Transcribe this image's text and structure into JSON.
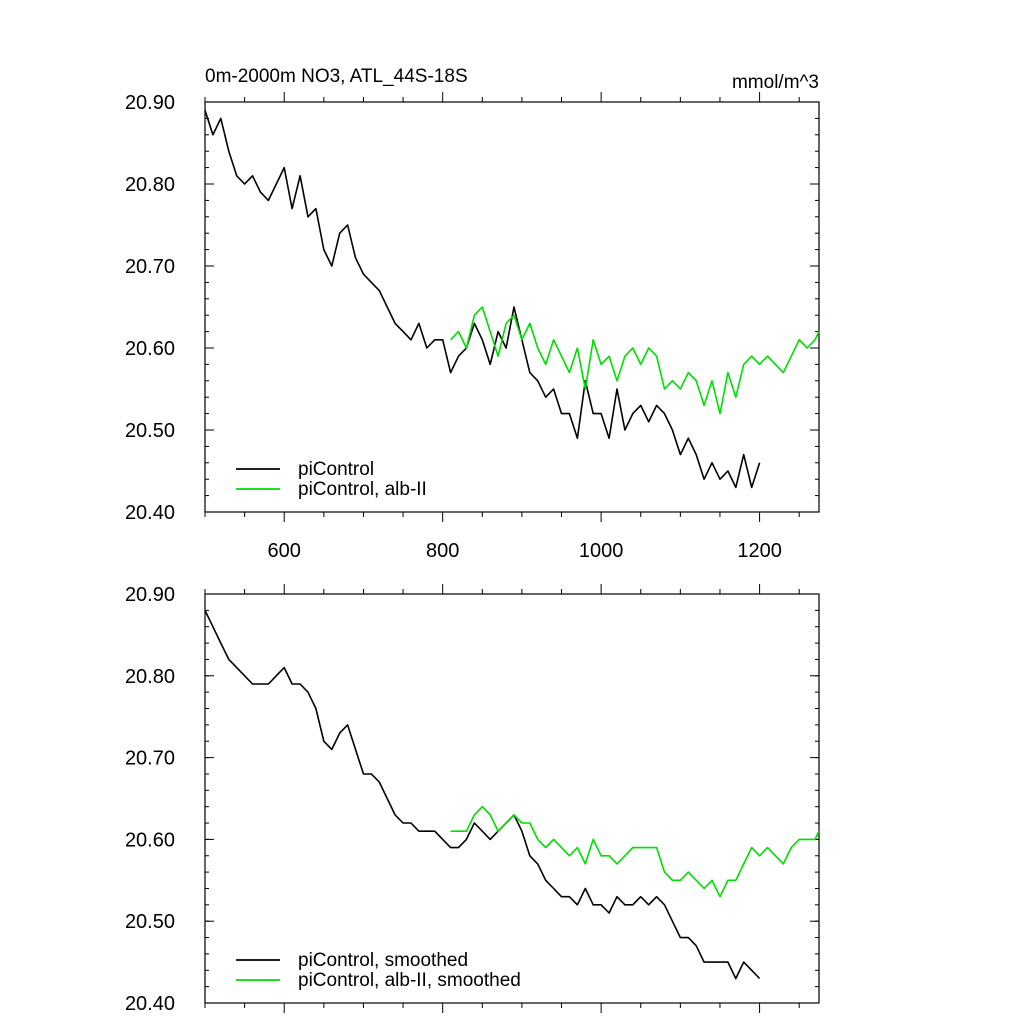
{
  "chart_data": [
    {
      "type": "line",
      "title": "0m-2000m NO3, ATL_44S-18S",
      "units": "mmol/m^3",
      "xlim": [
        500,
        1275
      ],
      "ylim": [
        20.4,
        20.9
      ],
      "xticks": [
        600,
        800,
        1000,
        1200
      ],
      "xtick_labels": [
        "600",
        "800",
        "1000",
        "1200"
      ],
      "yticks": [
        20.4,
        20.5,
        20.6,
        20.7,
        20.8,
        20.9
      ],
      "ytick_labels": [
        "20.40",
        "20.50",
        "20.60",
        "20.70",
        "20.80",
        "20.90"
      ],
      "legend_position": "bottom-left",
      "grid": false,
      "series": [
        {
          "name": "piControl",
          "color": "#000000",
          "x": [
            500,
            510,
            520,
            530,
            540,
            550,
            560,
            570,
            580,
            590,
            600,
            610,
            620,
            630,
            640,
            650,
            660,
            670,
            680,
            690,
            700,
            710,
            720,
            730,
            740,
            750,
            760,
            770,
            780,
            790,
            800,
            810,
            820,
            830,
            840,
            850,
            860,
            870,
            880,
            890,
            900,
            910,
            920,
            930,
            940,
            950,
            960,
            970,
            980,
            990,
            1000,
            1010,
            1020,
            1030,
            1040,
            1050,
            1060,
            1070,
            1080,
            1090,
            1100,
            1110,
            1120,
            1130,
            1140,
            1150,
            1160,
            1170,
            1180,
            1190,
            1200
          ],
          "y": [
            20.89,
            20.86,
            20.88,
            20.84,
            20.81,
            20.8,
            20.81,
            20.79,
            20.78,
            20.8,
            20.82,
            20.77,
            20.81,
            20.76,
            20.77,
            20.72,
            20.7,
            20.74,
            20.75,
            20.71,
            20.69,
            20.68,
            20.67,
            20.65,
            20.63,
            20.62,
            20.61,
            20.63,
            20.6,
            20.61,
            20.61,
            20.57,
            20.59,
            20.6,
            20.63,
            20.61,
            20.58,
            20.62,
            20.6,
            20.65,
            20.61,
            20.57,
            20.56,
            20.54,
            20.55,
            20.52,
            20.52,
            20.49,
            20.56,
            20.52,
            20.52,
            20.49,
            20.55,
            20.5,
            20.52,
            20.53,
            20.51,
            20.53,
            20.52,
            20.5,
            20.47,
            20.49,
            20.47,
            20.44,
            20.46,
            20.44,
            20.45,
            20.43,
            20.47,
            20.43,
            20.46
          ]
        },
        {
          "name": "piControl, alb-II",
          "color": "#00dd00",
          "x": [
            810,
            820,
            830,
            840,
            850,
            860,
            870,
            880,
            890,
            900,
            910,
            920,
            930,
            940,
            950,
            960,
            970,
            980,
            990,
            1000,
            1010,
            1020,
            1030,
            1040,
            1050,
            1060,
            1070,
            1080,
            1090,
            1100,
            1110,
            1120,
            1130,
            1140,
            1150,
            1160,
            1170,
            1180,
            1190,
            1200,
            1210,
            1220,
            1230,
            1240,
            1250,
            1260,
            1270,
            1275
          ],
          "y": [
            20.61,
            20.62,
            20.6,
            20.64,
            20.65,
            20.62,
            20.59,
            20.63,
            20.64,
            20.61,
            20.63,
            20.6,
            20.58,
            20.61,
            20.59,
            20.57,
            20.6,
            20.55,
            20.61,
            20.58,
            20.59,
            20.56,
            20.59,
            20.6,
            20.58,
            20.6,
            20.59,
            20.55,
            20.56,
            20.55,
            20.57,
            20.56,
            20.53,
            20.56,
            20.52,
            20.57,
            20.54,
            20.58,
            20.59,
            20.58,
            20.59,
            20.58,
            20.57,
            20.59,
            20.61,
            20.6,
            20.61,
            20.62
          ]
        }
      ]
    },
    {
      "type": "line",
      "title": "",
      "units": "",
      "xlim": [
        500,
        1275
      ],
      "ylim": [
        20.4,
        20.9
      ],
      "xticks": [
        600,
        800,
        1000,
        1200
      ],
      "xtick_labels": [],
      "yticks": [
        20.4,
        20.5,
        20.6,
        20.7,
        20.8,
        20.9
      ],
      "ytick_labels": [
        "20.40",
        "20.50",
        "20.60",
        "20.70",
        "20.80",
        "20.90"
      ],
      "legend_position": "bottom-left",
      "grid": false,
      "series": [
        {
          "name": "piControl, smoothed",
          "color": "#000000",
          "x": [
            500,
            510,
            520,
            530,
            540,
            550,
            560,
            570,
            580,
            590,
            600,
            610,
            620,
            630,
            640,
            650,
            660,
            670,
            680,
            690,
            700,
            710,
            720,
            730,
            740,
            750,
            760,
            770,
            780,
            790,
            800,
            810,
            820,
            830,
            840,
            850,
            860,
            870,
            880,
            890,
            900,
            910,
            920,
            930,
            940,
            950,
            960,
            970,
            980,
            990,
            1000,
            1010,
            1020,
            1030,
            1040,
            1050,
            1060,
            1070,
            1080,
            1090,
            1100,
            1110,
            1120,
            1130,
            1140,
            1150,
            1160,
            1170,
            1180,
            1190,
            1200
          ],
          "y": [
            20.88,
            20.86,
            20.84,
            20.82,
            20.81,
            20.8,
            20.79,
            20.79,
            20.79,
            20.8,
            20.81,
            20.79,
            20.79,
            20.78,
            20.76,
            20.72,
            20.71,
            20.73,
            20.74,
            20.71,
            20.68,
            20.68,
            20.67,
            20.65,
            20.63,
            20.62,
            20.62,
            20.61,
            20.61,
            20.61,
            20.6,
            20.59,
            20.59,
            20.6,
            20.62,
            20.61,
            20.6,
            20.61,
            20.62,
            20.63,
            20.61,
            20.58,
            20.57,
            20.55,
            20.54,
            20.53,
            20.53,
            20.52,
            20.54,
            20.52,
            20.52,
            20.51,
            20.53,
            20.52,
            20.52,
            20.53,
            20.52,
            20.53,
            20.52,
            20.5,
            20.48,
            20.48,
            20.47,
            20.45,
            20.45,
            20.45,
            20.45,
            20.43,
            20.45,
            20.44,
            20.43
          ]
        },
        {
          "name": "piControl, alb-II, smoothed",
          "color": "#00dd00",
          "x": [
            810,
            820,
            830,
            840,
            850,
            860,
            870,
            880,
            890,
            900,
            910,
            920,
            930,
            940,
            950,
            960,
            970,
            980,
            990,
            1000,
            1010,
            1020,
            1030,
            1040,
            1050,
            1060,
            1070,
            1080,
            1090,
            1100,
            1110,
            1120,
            1130,
            1140,
            1150,
            1160,
            1170,
            1180,
            1190,
            1200,
            1210,
            1220,
            1230,
            1240,
            1250,
            1260,
            1270,
            1275
          ],
          "y": [
            20.61,
            20.61,
            20.61,
            20.63,
            20.64,
            20.63,
            20.61,
            20.62,
            20.63,
            20.62,
            20.62,
            20.6,
            20.59,
            20.6,
            20.59,
            20.58,
            20.59,
            20.57,
            20.6,
            20.58,
            20.58,
            20.57,
            20.58,
            20.59,
            20.59,
            20.59,
            20.59,
            20.56,
            20.55,
            20.55,
            20.56,
            20.55,
            20.54,
            20.55,
            20.53,
            20.55,
            20.55,
            20.57,
            20.59,
            20.58,
            20.59,
            20.58,
            20.57,
            20.59,
            20.6,
            20.6,
            20.6,
            20.61
          ]
        }
      ]
    }
  ]
}
